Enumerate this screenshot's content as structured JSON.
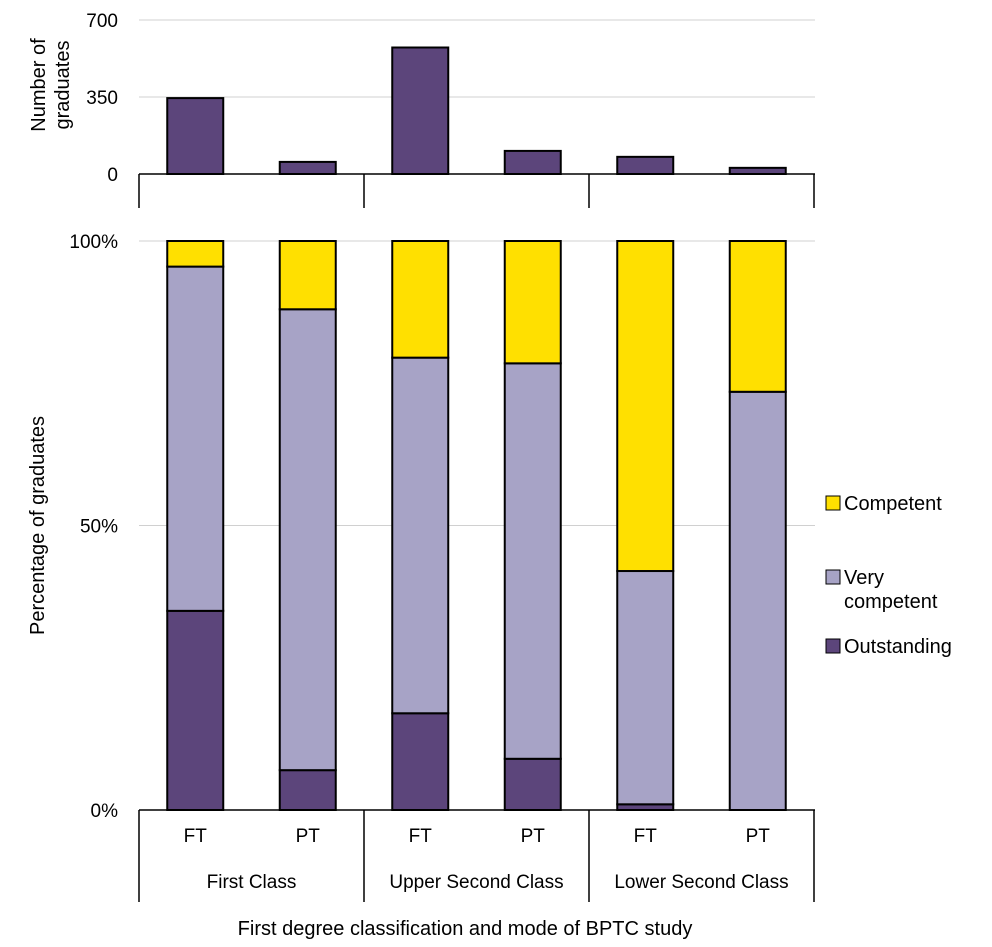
{
  "chart_data": {
    "type": "bar",
    "top_panel": {
      "ylabel_lines": [
        "Number of",
        "graduates"
      ],
      "yticks": [
        0,
        350,
        700
      ],
      "ylim": [
        0,
        700
      ],
      "grid": true,
      "values": [
        345,
        55,
        575,
        105,
        78,
        28
      ]
    },
    "bottom_panel": {
      "ylabel": "Percentage of graduates",
      "yticks": [
        0,
        50,
        100
      ],
      "ytick_labels": [
        "0%",
        "50%",
        "100%"
      ],
      "ylim": [
        0,
        100
      ],
      "grid": true,
      "stacked": true,
      "series": [
        {
          "name": "Outstanding",
          "color": "#5c457b",
          "values": [
            35,
            7,
            17,
            9,
            1,
            0
          ]
        },
        {
          "name": "Very competent",
          "color": "#a7a3c6",
          "values": [
            60.5,
            81,
            62.5,
            69.5,
            41,
            73.5
          ]
        },
        {
          "name": "Competent",
          "color": "#ffe000",
          "values": [
            4.5,
            12,
            20.5,
            21.5,
            58,
            26.5
          ]
        }
      ]
    },
    "categories": [
      "FT",
      "PT",
      "FT",
      "PT",
      "FT",
      "PT"
    ],
    "groups": [
      "First Class",
      "Upper Second Class",
      "Lower Second Class"
    ],
    "xlabel": "First degree classification and mode of BPTC study",
    "legend": {
      "placement": "right",
      "entries": [
        {
          "label_lines": [
            "Competent"
          ],
          "color": "#ffe000"
        },
        {
          "label_lines": [
            "Very",
            "competent"
          ],
          "color": "#a7a3c6"
        },
        {
          "label_lines": [
            "Outstanding"
          ],
          "color": "#5c457b"
        }
      ]
    }
  }
}
